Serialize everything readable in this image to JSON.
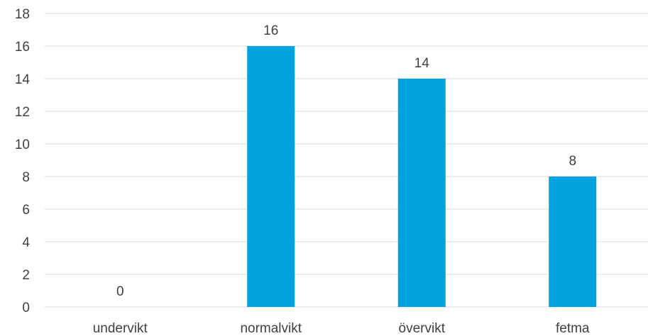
{
  "chart_data": {
    "type": "bar",
    "title": "",
    "xlabel": "",
    "ylabel": "",
    "categories": [
      "undervikt",
      "normalvikt",
      "övervikt",
      "fetma"
    ],
    "values": [
      0,
      16,
      14,
      8
    ],
    "data_labels": [
      "0",
      "16",
      "14",
      "8"
    ],
    "ylim": [
      0,
      18
    ],
    "y_ticks": [
      0,
      2,
      4,
      6,
      8,
      10,
      12,
      14,
      16,
      18
    ],
    "y_tick_labels": [
      "0",
      "2",
      "4",
      "6",
      "8",
      "10",
      "12",
      "14",
      "16",
      "18"
    ],
    "grid": true,
    "legend": "none",
    "colors": {
      "bar": "#00a2e0",
      "grid": "#d9d9d9",
      "text": "#404040"
    }
  }
}
